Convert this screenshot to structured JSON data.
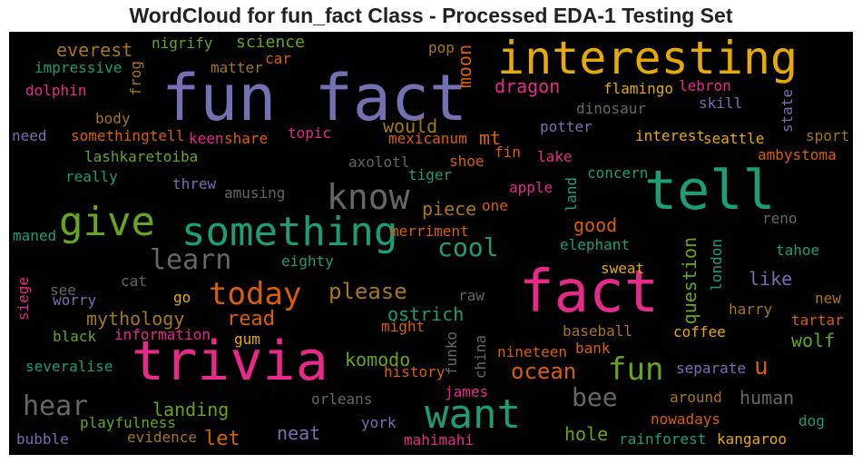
{
  "title": "WordCloud for fun_fact Class - Processed EDA-1 Testing Set",
  "colors": {
    "purple": "#7570b3",
    "gold": "#e6ab02",
    "teal": "#1b9e77",
    "pink": "#e7298a",
    "orange": "#d95f02",
    "green": "#66a61e",
    "gray": "#666666",
    "brown": "#a6761d"
  },
  "words": [
    "fun fact",
    "interesting",
    "tell",
    "fact",
    "trivia",
    "something",
    "give",
    "want",
    "know",
    "today",
    "fun",
    "learn",
    "cool",
    "hear",
    "bee",
    "ocean",
    "please",
    "read",
    "let",
    "everest",
    "science",
    "nigrify",
    "impressive",
    "dolphin",
    "frog",
    "matter",
    "car",
    "pop",
    "moon",
    "dragon",
    "flamingo",
    "lebron",
    "body",
    "need",
    "somethingtell",
    "keen",
    "share",
    "topic",
    "would",
    "mt",
    "mexicanum",
    "dinosaur",
    "skill",
    "state",
    "potter",
    "interest",
    "seattle",
    "sport",
    "lashkaretoiba",
    "axolotl",
    "shoe",
    "fin",
    "lake",
    "ambystoma",
    "really",
    "threw",
    "amusing",
    "tiger",
    "concern",
    "apple",
    "land",
    "piece",
    "one",
    "reno",
    "maned",
    "merriment",
    "good",
    "elephant",
    "tahoe",
    "eighty",
    "question",
    "london",
    "sweat",
    "like",
    "siege",
    "see",
    "cat",
    "worry",
    "go",
    "mythology",
    "ostrich",
    "raw",
    "harry",
    "new",
    "tartar",
    "black",
    "information",
    "gum",
    "might",
    "baseball",
    "coffee",
    "wolf",
    "komodo",
    "funko",
    "china",
    "nineteen",
    "bank",
    "u",
    "severalise",
    "history",
    "separate",
    "orleans",
    "human",
    "around",
    "james",
    "landing",
    "playfulness",
    "york",
    "nowadays",
    "dog",
    "neat",
    "bubble",
    "evidence",
    "mahimahi",
    "hole",
    "rainforest",
    "kangaroo"
  ]
}
